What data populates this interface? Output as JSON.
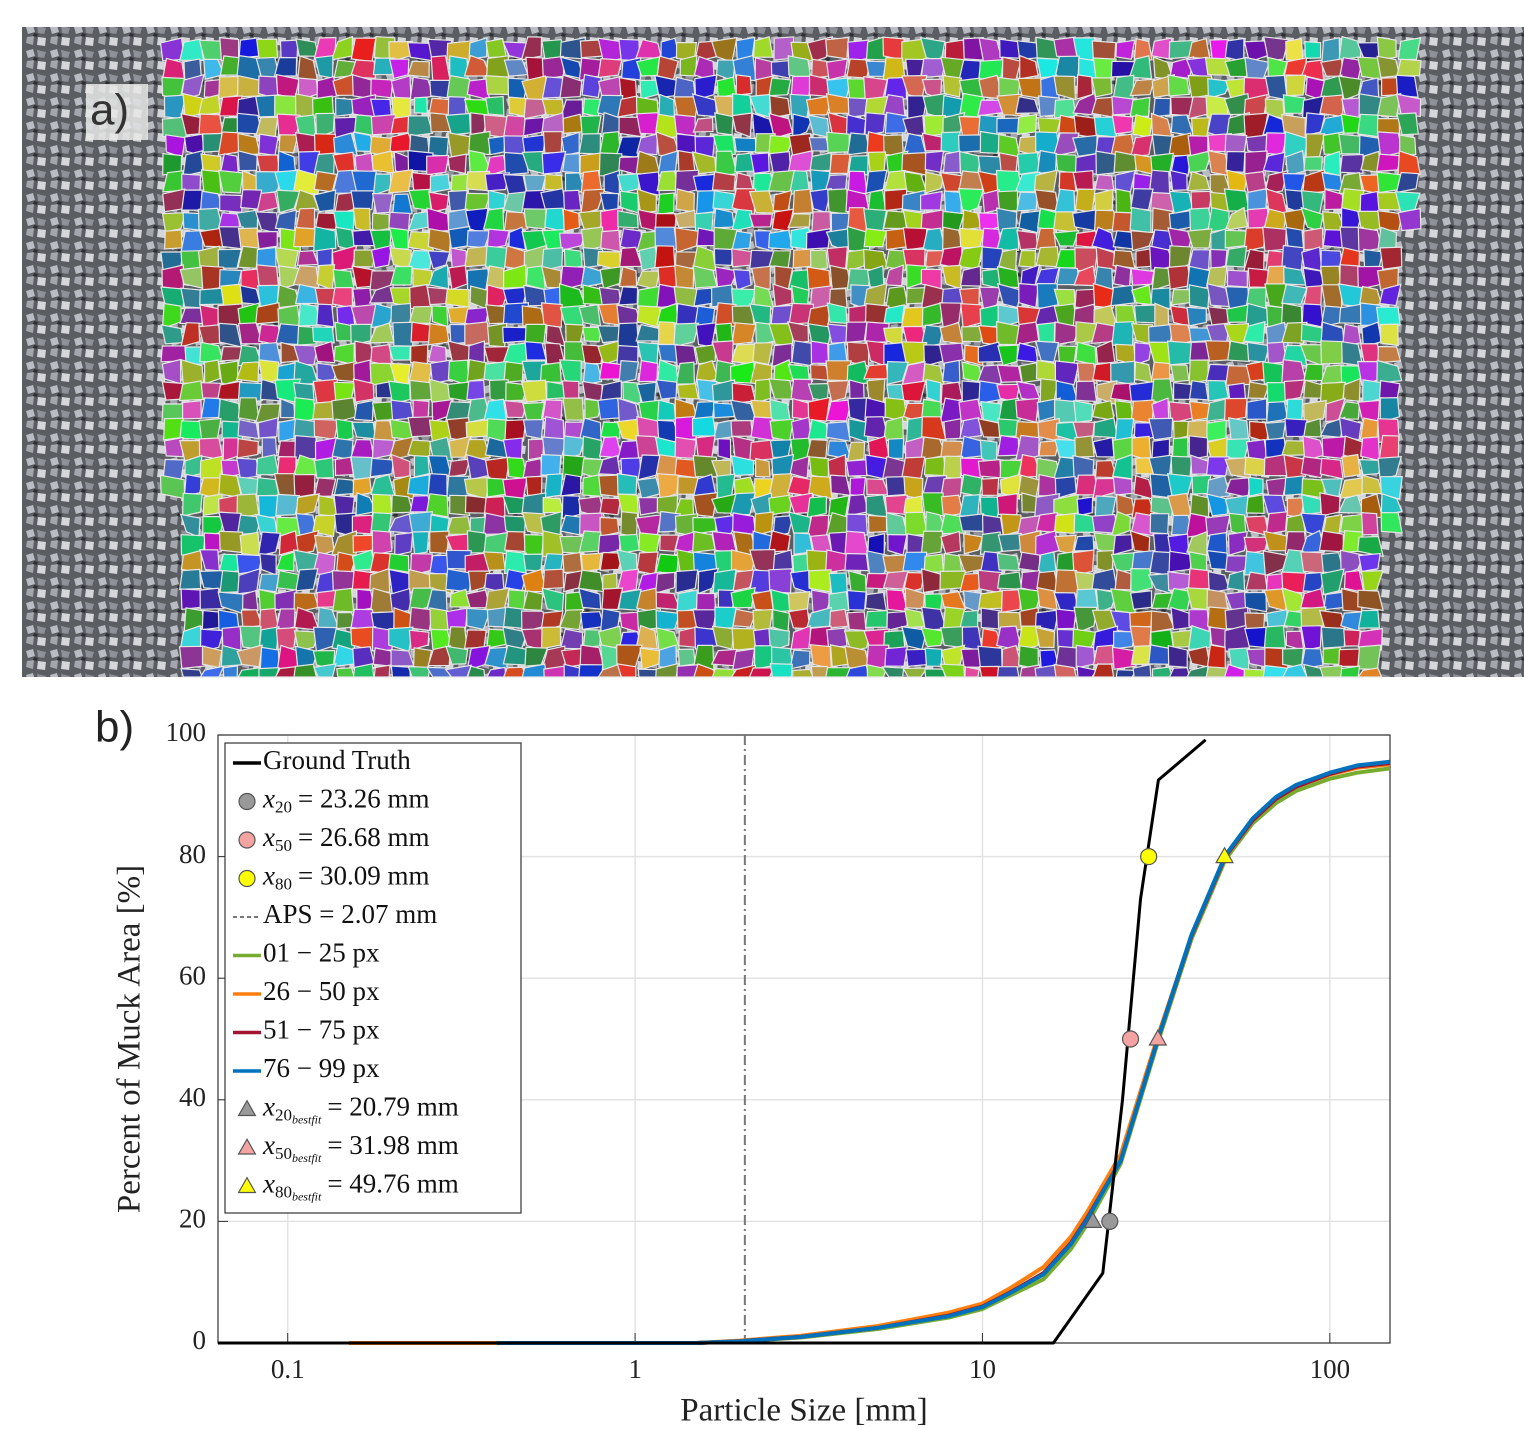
{
  "panel_a": {
    "label": "a)"
  },
  "chart_data": {
    "type": "line",
    "panel_label": "b)",
    "xlabel": "Particle Size [mm]",
    "ylabel": "Percent of Muck Area [%]",
    "xscale": "log",
    "xlim": [
      0.063,
      149
    ],
    "ylim": [
      0,
      100
    ],
    "xticks": [
      0.1,
      1,
      10,
      100
    ],
    "yticks": [
      0,
      20,
      40,
      60,
      80,
      100
    ],
    "grid": true,
    "legend": "upper left",
    "series": [
      {
        "name": "Ground Truth",
        "color": "#000000",
        "x": [
          0.063,
          16,
          22.2,
          25.3,
          28.5,
          32.1,
          43.9
        ],
        "values": [
          0,
          0,
          11.5,
          40,
          73,
          92.6,
          99.2
        ]
      },
      {
        "name": "01 − 25 px",
        "color": "#77ac30",
        "x": [
          1.5,
          2,
          3,
          5,
          8,
          10,
          12,
          15,
          18,
          20,
          25,
          32,
          40,
          50,
          60,
          70,
          80,
          100,
          120,
          149
        ],
        "values": [
          0,
          0.3,
          0.9,
          2.3,
          4.2,
          5.6,
          7.8,
          10.5,
          15.5,
          19.5,
          29.5,
          49.5,
          66.5,
          79.5,
          85.5,
          88.8,
          90.8,
          92.8,
          93.8,
          94.5
        ]
      },
      {
        "name": "26 − 50 px",
        "color": "#ff7f0e",
        "x": [
          0.15,
          1.5,
          2,
          3,
          5,
          8,
          10,
          12,
          15,
          18,
          20,
          25,
          32,
          40,
          50,
          60,
          70,
          80,
          100,
          120,
          149
        ],
        "values": [
          0,
          0,
          0.4,
          1.2,
          2.8,
          5,
          6.5,
          9,
          12.5,
          17.5,
          21.5,
          31,
          50.5,
          67,
          80,
          86,
          89.5,
          91.5,
          93.5,
          94.6,
          95.2
        ]
      },
      {
        "name": "51 − 75 px",
        "color": "#a2142f",
        "x": [
          1.5,
          2,
          3,
          5,
          8,
          10,
          12,
          15,
          18,
          20,
          25,
          32,
          40,
          50,
          60,
          70,
          80,
          100,
          120,
          149
        ],
        "values": [
          0,
          0.3,
          1,
          2.5,
          4.5,
          6,
          8.3,
          11.5,
          16.5,
          20.5,
          30,
          50,
          67,
          80,
          86,
          89.5,
          91.5,
          93.6,
          94.8,
          95.4
        ]
      },
      {
        "name": "76 − 99 px",
        "color": "#0072bd",
        "x": [
          0.4,
          1.5,
          2,
          3,
          5,
          8,
          10,
          12,
          15,
          18,
          20,
          25,
          32,
          40,
          50,
          60,
          70,
          80,
          100,
          120,
          149
        ],
        "values": [
          0,
          0,
          0.3,
          1,
          2.5,
          4.4,
          5.9,
          8.2,
          11.3,
          16.3,
          20.3,
          30,
          50,
          67.2,
          80.2,
          86.3,
          89.8,
          91.8,
          93.8,
          95,
          95.6
        ]
      }
    ],
    "aps": {
      "label": "APS = 2.07 mm",
      "x": 2.07,
      "color": "#777777"
    },
    "markers": [
      {
        "shape": "circle",
        "symbol": "x",
        "subscript": "20",
        "label": "= 23.26 mm",
        "x": 23.26,
        "y": 20,
        "color": "#999999"
      },
      {
        "shape": "circle",
        "symbol": "x",
        "subscript": "50",
        "label": "= 26.68 mm",
        "x": 26.68,
        "y": 50,
        "color": "#f4a3a3"
      },
      {
        "shape": "circle",
        "symbol": "x",
        "subscript": "80",
        "label": "= 30.09 mm",
        "x": 30.09,
        "y": 80,
        "color": "#ffff00"
      },
      {
        "shape": "triangle",
        "symbol": "x",
        "subscript": "20",
        "subsubscript": "bestfit",
        "label": "= 20.79 mm",
        "x": 20.79,
        "y": 20,
        "color": "#999999"
      },
      {
        "shape": "triangle",
        "symbol": "x",
        "subscript": "50",
        "subsubscript": "bestfit",
        "label": "= 31.98 mm",
        "x": 31.98,
        "y": 50,
        "color": "#f4a3a3"
      },
      {
        "shape": "triangle",
        "symbol": "x",
        "subscript": "80",
        "subsubscript": "bestfit",
        "label": "= 49.76 mm",
        "x": 49.76,
        "y": 80,
        "color": "#ffff00"
      }
    ]
  }
}
